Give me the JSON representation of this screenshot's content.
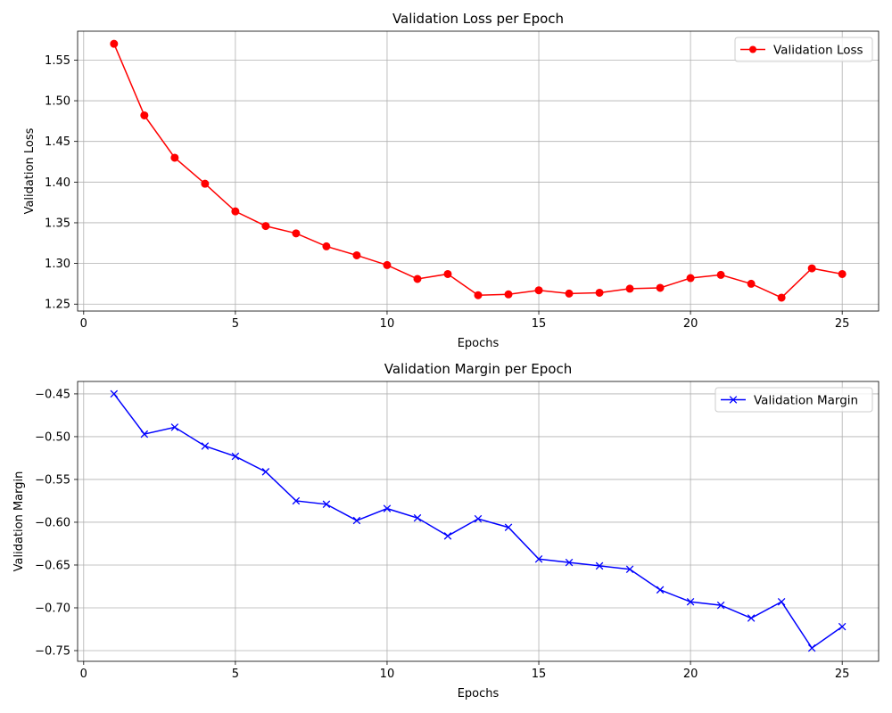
{
  "chart_data": [
    {
      "type": "line",
      "title": "Validation Loss per Epoch",
      "xlabel": "Epochs",
      "ylabel": "Validation Loss",
      "xlim": [
        -0.2,
        26.2
      ],
      "ylim": [
        1.2415,
        1.5855
      ],
      "xticks": [
        0,
        5,
        10,
        15,
        20,
        25
      ],
      "yticks": [
        1.25,
        1.3,
        1.35,
        1.4,
        1.45,
        1.5,
        1.55
      ],
      "ytick_decimals": 2,
      "grid": true,
      "legend_position": "top-right",
      "x": [
        1,
        2,
        3,
        4,
        5,
        6,
        7,
        8,
        9,
        10,
        11,
        12,
        13,
        14,
        15,
        16,
        17,
        18,
        19,
        20,
        21,
        22,
        23,
        24,
        25
      ],
      "series": [
        {
          "name": "Validation Loss",
          "color": "#ff0000",
          "marker": "circle",
          "values": [
            1.57,
            1.482,
            1.43,
            1.398,
            1.364,
            1.346,
            1.337,
            1.321,
            1.31,
            1.298,
            1.281,
            1.287,
            1.261,
            1.262,
            1.267,
            1.263,
            1.264,
            1.269,
            1.27,
            1.282,
            1.286,
            1.275,
            1.258,
            1.294,
            1.287
          ]
        }
      ]
    },
    {
      "type": "line",
      "title": "Validation Margin per Epoch",
      "xlabel": "Epochs",
      "ylabel": "Validation Margin",
      "xlim": [
        -0.2,
        26.2
      ],
      "ylim": [
        -0.7625,
        -0.4355
      ],
      "xticks": [
        0,
        5,
        10,
        15,
        20,
        25
      ],
      "yticks": [
        -0.75,
        -0.7,
        -0.65,
        -0.6,
        -0.55,
        -0.5,
        -0.45
      ],
      "ytick_decimals": 2,
      "grid": true,
      "legend_position": "top-right",
      "x": [
        1,
        2,
        3,
        4,
        5,
        6,
        7,
        8,
        9,
        10,
        11,
        12,
        13,
        14,
        15,
        16,
        17,
        18,
        19,
        20,
        21,
        22,
        23,
        24,
        25
      ],
      "series": [
        {
          "name": "Validation Margin",
          "color": "#0000ff",
          "marker": "x",
          "values": [
            -0.45,
            -0.497,
            -0.489,
            -0.511,
            -0.523,
            -0.541,
            -0.575,
            -0.579,
            -0.598,
            -0.584,
            -0.595,
            -0.616,
            -0.596,
            -0.606,
            -0.643,
            -0.647,
            -0.651,
            -0.655,
            -0.679,
            -0.693,
            -0.697,
            -0.712,
            -0.693,
            -0.747,
            -0.722
          ]
        }
      ]
    }
  ]
}
